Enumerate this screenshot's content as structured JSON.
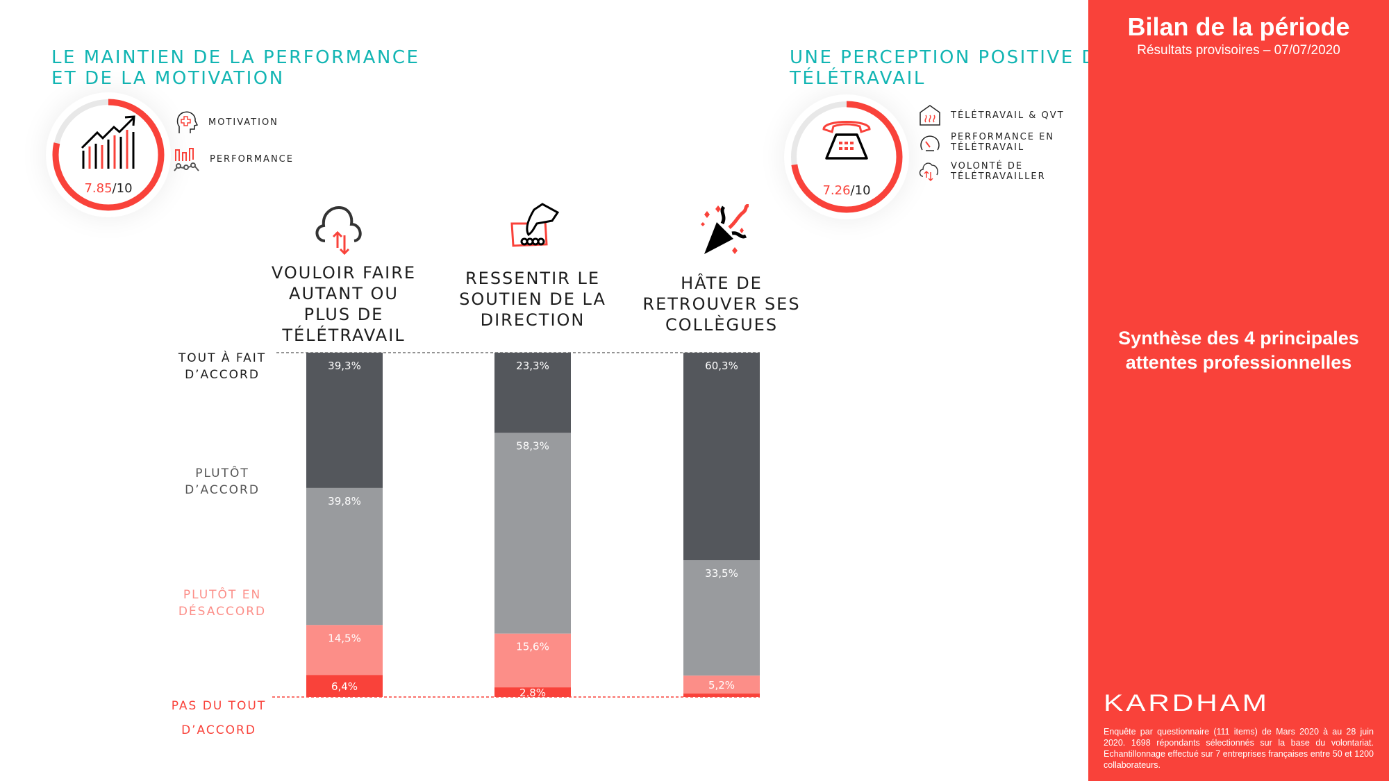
{
  "left_section": {
    "title_lines": [
      "LE MAINTIEN DE LA PERFORMANCE",
      "ET DE LA MOTIVATION"
    ],
    "score": "7.85",
    "score_max": "/10",
    "score_fraction": 0.785,
    "legend": [
      {
        "label": "MOTIVATION",
        "icon": "head-medical-icon"
      },
      {
        "label": "PERFORMANCE",
        "icon": "bar-chart-people-icon"
      }
    ]
  },
  "right_section": {
    "title_lines": [
      "UNE PERCEPTION POSITIVE DU",
      "TÉLÉTRAVAIL"
    ],
    "score": "7.26",
    "score_max": "/10",
    "score_fraction": 0.726,
    "legend": [
      {
        "lines": [
          "TÉLÉTRAVAIL & QVT"
        ],
        "icon": "house-heat-icon"
      },
      {
        "lines": [
          "PERFORMANCE EN",
          "TÉLÉTRAVAIL"
        ],
        "icon": "speedometer-icon"
      },
      {
        "lines": [
          "VOLONTÉ DE",
          "TÉLÉTRAVAILLER"
        ],
        "icon": "cloud-sync-icon"
      }
    ]
  },
  "colors": {
    "teal": "#12b5b3",
    "red": "#f9423a",
    "dark": "#54575c",
    "grey": "#999b9e",
    "pink": "#fc8e88"
  },
  "chart_data": {
    "type": "bar",
    "stacked": true,
    "orientation": "vertical",
    "categories": [
      [
        "VOULOIR FAIRE",
        "AUTANT OU",
        "PLUS DE",
        "TÉLÉTRAVAIL"
      ],
      [
        "RESSENTIR LE",
        "SOUTIEN DE LA",
        "DIRECTION"
      ],
      [
        "HÂTE DE",
        "RETROUVER SES",
        "COLLÈGUES"
      ]
    ],
    "category_icons": [
      "cloud-sync-icon",
      "handshake-icon",
      "party-popper-icon"
    ],
    "series": [
      {
        "name_lines": [
          "TOUT À FAIT",
          "D’ACCORD"
        ],
        "color": "#54575c",
        "values": [
          39.3,
          23.3,
          60.3
        ],
        "labels": [
          "39,3%",
          "23,3%",
          "60,3%"
        ]
      },
      {
        "name_lines": [
          "PLUTÔT",
          "D’ACCORD"
        ],
        "color": "#999b9e",
        "values": [
          39.8,
          58.3,
          33.5
        ],
        "labels": [
          "39,8%",
          "58,3%",
          "33,5%"
        ]
      },
      {
        "name_lines": [
          "PLUTÔT EN",
          "DÉSACCORD"
        ],
        "color": "#fc8e88",
        "values": [
          14.5,
          15.6,
          5.2
        ],
        "labels": [
          "14,5%",
          "15,6%",
          "5,2%"
        ]
      },
      {
        "name_lines": [
          "PAS DU TOUT",
          "D’ACCORD"
        ],
        "color": "#f9423a",
        "values": [
          6.4,
          2.8,
          1.0
        ],
        "labels": [
          "6,4%",
          "2,8%",
          ""
        ]
      }
    ],
    "ylim": [
      0,
      100
    ]
  },
  "panel": {
    "title": "Bilan de la période",
    "subtitle": "Résultats provisoires – 07/07/2020",
    "headline_lines": [
      "Synthèse des 4 principales",
      "attentes professionnelles"
    ],
    "logo": "KARDHAM",
    "footnote": "Enquête par questionnaire (111 items) de Mars 2020 à au 28 juin 2020. 1698 répondants sélectionnés sur la base du volontariat. Echantillonnage effectué sur 7 entreprises françaises entre 50 et 1200 collaborateurs."
  }
}
